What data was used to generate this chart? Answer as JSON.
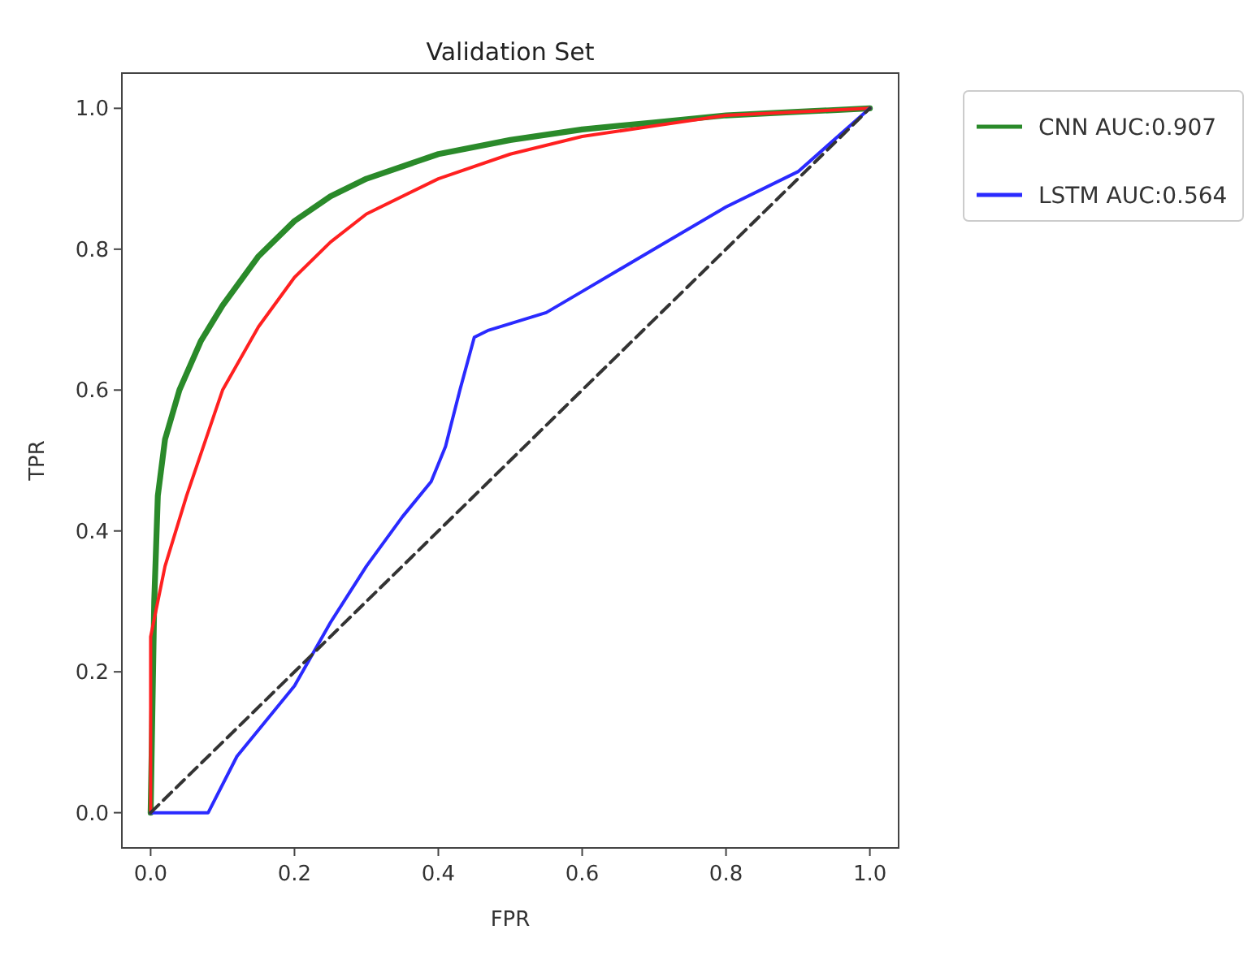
{
  "chart_data": {
    "type": "line",
    "title": "Validation Set",
    "xlabel": "FPR",
    "ylabel": "TPR",
    "xlim": [
      -0.04,
      1.04
    ],
    "ylim": [
      -0.05,
      1.05
    ],
    "xticks": [
      {
        "value": 0,
        "label": "0.0"
      },
      0.2,
      0.4,
      0.6,
      0.8,
      {
        "value": 1,
        "label": "1.0"
      }
    ],
    "yticks": [
      {
        "value": 0,
        "label": "0.0"
      },
      0.2,
      0.4,
      0.6,
      0.8,
      {
        "value": 1,
        "label": "1.0"
      }
    ],
    "grid": false,
    "legend": "top right",
    "marker": "none",
    "series": [
      {
        "name": "CNN AUC:0.907",
        "color": "#2a8a2a",
        "x": [
          0,
          0.005,
          0.01,
          0.02,
          0.04,
          0.07,
          0.1,
          0.15,
          0.2,
          0.25,
          0.3,
          0.4,
          0.5,
          0.6,
          0.7,
          0.8,
          0.9,
          1
        ],
        "values": [
          0,
          0.3,
          0.45,
          0.53,
          0.6,
          0.67,
          0.72,
          0.79,
          0.84,
          0.875,
          0.9,
          0.935,
          0.955,
          0.97,
          0.98,
          0.99,
          0.995,
          1
        ]
      },
      {
        "color": "#ff2020",
        "x": [
          0,
          0,
          0.02,
          0.05,
          0.08,
          0.1,
          0.15,
          0.2,
          0.25,
          0.3,
          0.4,
          0.5,
          0.6,
          0.7,
          0.8,
          0.9,
          1
        ],
        "values": [
          0,
          0.25,
          0.35,
          0.45,
          0.54,
          0.6,
          0.69,
          0.76,
          0.81,
          0.85,
          0.9,
          0.935,
          0.96,
          0.975,
          0.99,
          0.995,
          1
        ]
      },
      {
        "name": "LSTM AUC:0.564",
        "color": "#2a2aff",
        "x": [
          0,
          0.08,
          0.12,
          0.2,
          0.25,
          0.3,
          0.35,
          0.39,
          0.41,
          0.43,
          0.45,
          0.47,
          0.55,
          0.6,
          0.7,
          0.8,
          0.9,
          1
        ],
        "values": [
          0,
          0,
          0.08,
          0.18,
          0.27,
          0.35,
          0.42,
          0.47,
          0.52,
          0.6,
          0.675,
          0.685,
          0.71,
          0.74,
          0.8,
          0.86,
          0.91,
          1
        ]
      },
      {
        "color": "#333333",
        "line_style": "dashed",
        "x": [
          0,
          1
        ],
        "values": [
          0,
          1
        ]
      }
    ]
  }
}
